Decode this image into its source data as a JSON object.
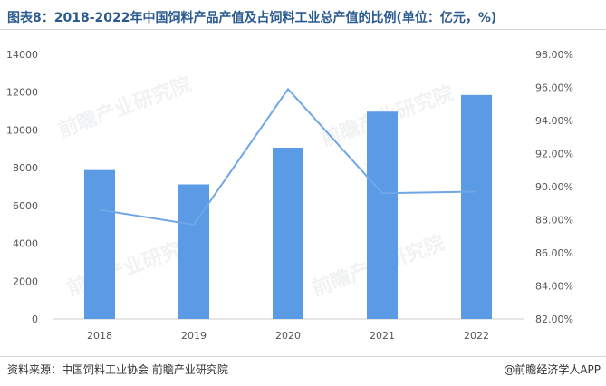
{
  "title": "图表8：2018-2022年中国饲料产品产值及占饲料工业总产值的比例(单位：亿元，%)",
  "source": "资料来源：中国饲料工业协会 前瞻产业研究院",
  "brand": "@前瞻经济学人APP",
  "watermark": "前瞻产业研究院",
  "colors": {
    "bar": "#5b9be6",
    "line": "#6fa6e8",
    "title": "#2b5a8e"
  },
  "chart_data": {
    "type": "bar",
    "categories": [
      "2018",
      "2019",
      "2020",
      "2021",
      "2022"
    ],
    "series": [
      {
        "type": "bar",
        "axis": "left",
        "values": [
          7880,
          7120,
          9060,
          10970,
          11850
        ]
      },
      {
        "type": "line",
        "axis": "right",
        "values": [
          88.6,
          87.7,
          95.9,
          89.6,
          89.7
        ]
      }
    ],
    "y_left": {
      "min": 0,
      "max": 14000,
      "ticks": [
        "0",
        "2000",
        "4000",
        "6000",
        "8000",
        "10000",
        "12000",
        "14000"
      ]
    },
    "y_right": {
      "min": 82,
      "max": 98,
      "ticks": [
        "82.00%",
        "84.00%",
        "86.00%",
        "88.00%",
        "90.00%",
        "92.00%",
        "94.00%",
        "96.00%",
        "98.00%"
      ]
    },
    "grid": false,
    "legend": "none"
  }
}
